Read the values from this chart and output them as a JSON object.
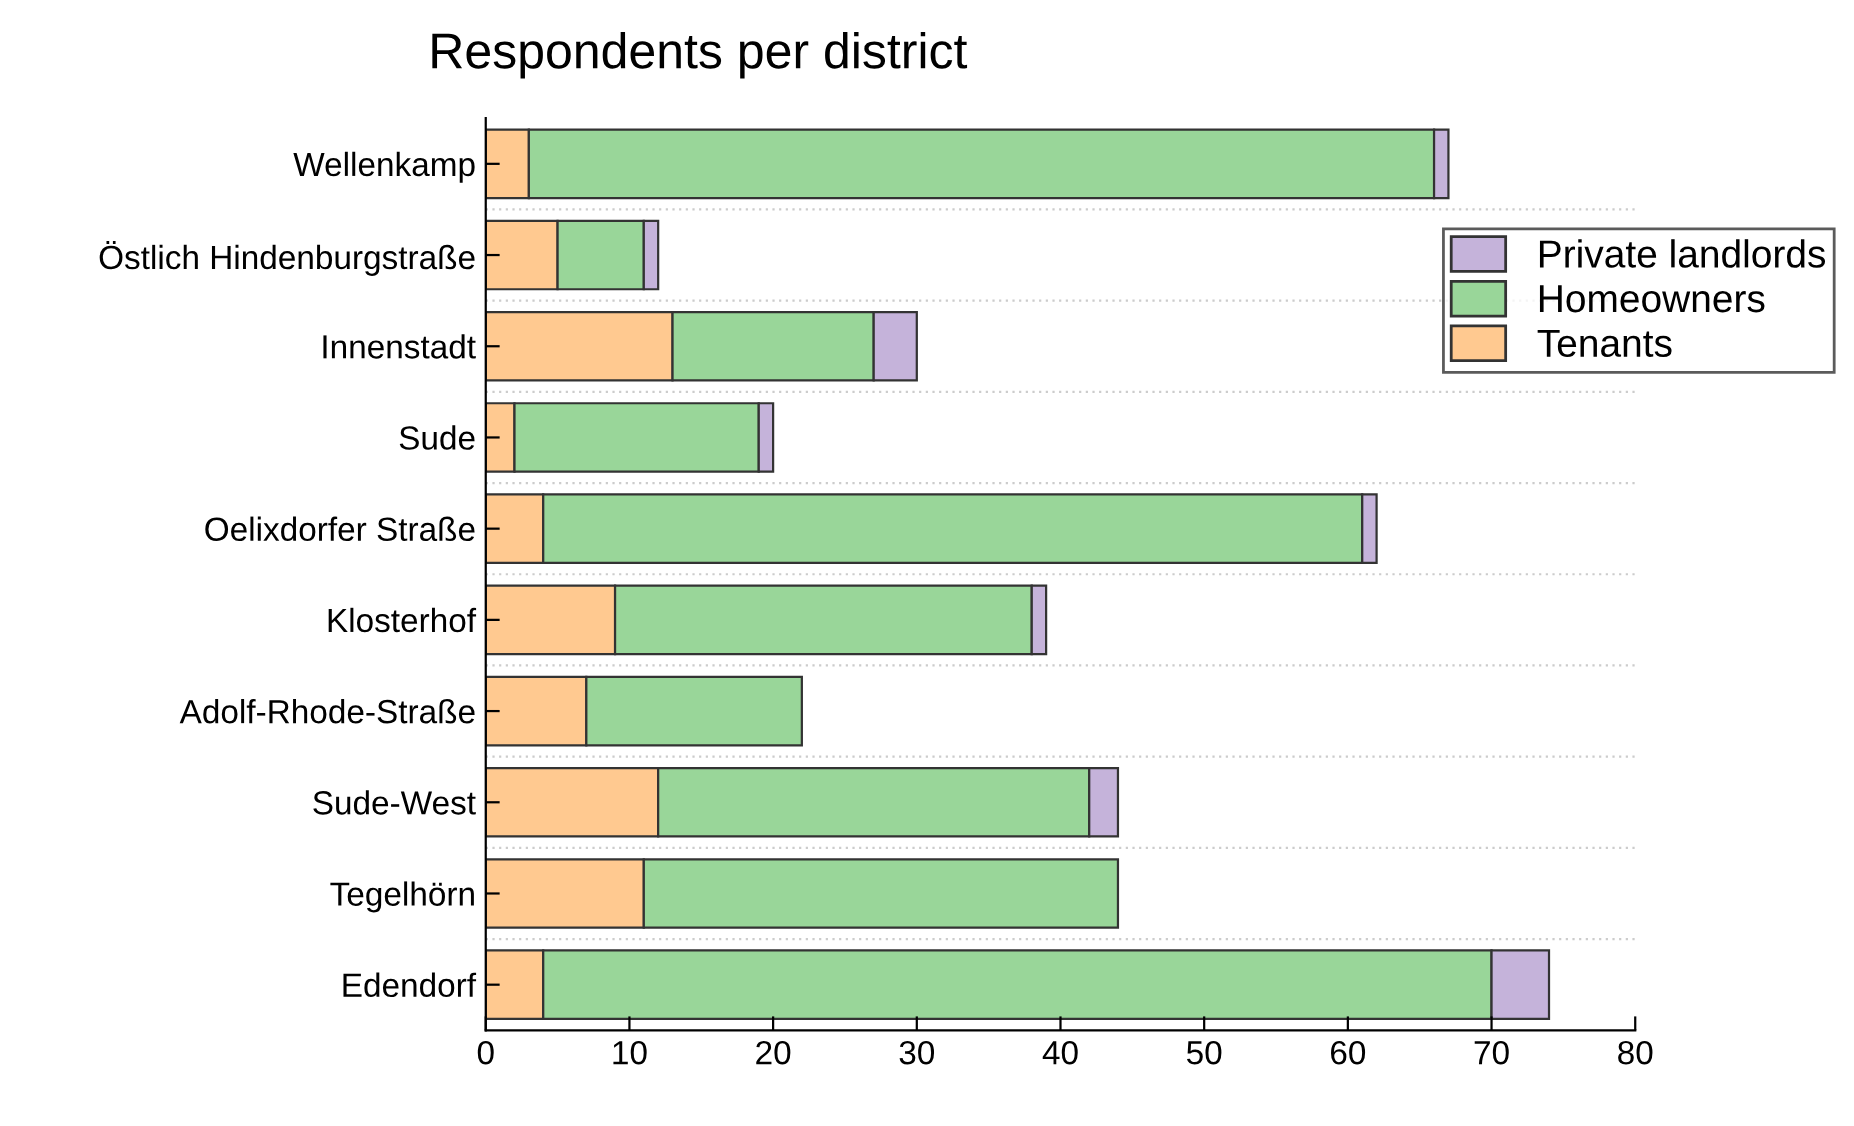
{
  "chart_data": {
    "type": "bar",
    "orientation": "horizontal",
    "stacked": true,
    "title": "Respondents per district",
    "categories": [
      "Wellenkamp",
      "Östlich Hindenburgstraße",
      "Innenstadt",
      "Sude",
      "Oelixdorfer Straße",
      "Klosterhof",
      "Adolf-Rhode-Straße",
      "Sude-West",
      "Tegelhörn",
      "Edendorf"
    ],
    "series": [
      {
        "name": "Tenants",
        "color": "#ffc990",
        "values": [
          3,
          5,
          13,
          2,
          4,
          9,
          7,
          12,
          11,
          4
        ]
      },
      {
        "name": "Homeowners",
        "color": "#99d699",
        "values": [
          63,
          6,
          14,
          17,
          57,
          29,
          15,
          30,
          33,
          66
        ]
      },
      {
        "name": "Private landlords",
        "color": "#c5b3da",
        "values": [
          1,
          1,
          3,
          1,
          1,
          1,
          null,
          2,
          null,
          4
        ]
      }
    ],
    "xlim": [
      0,
      80
    ],
    "xticks": [
      0,
      10,
      20,
      30,
      40,
      50,
      60,
      70,
      80
    ],
    "grid": "y",
    "legend": "top right"
  }
}
